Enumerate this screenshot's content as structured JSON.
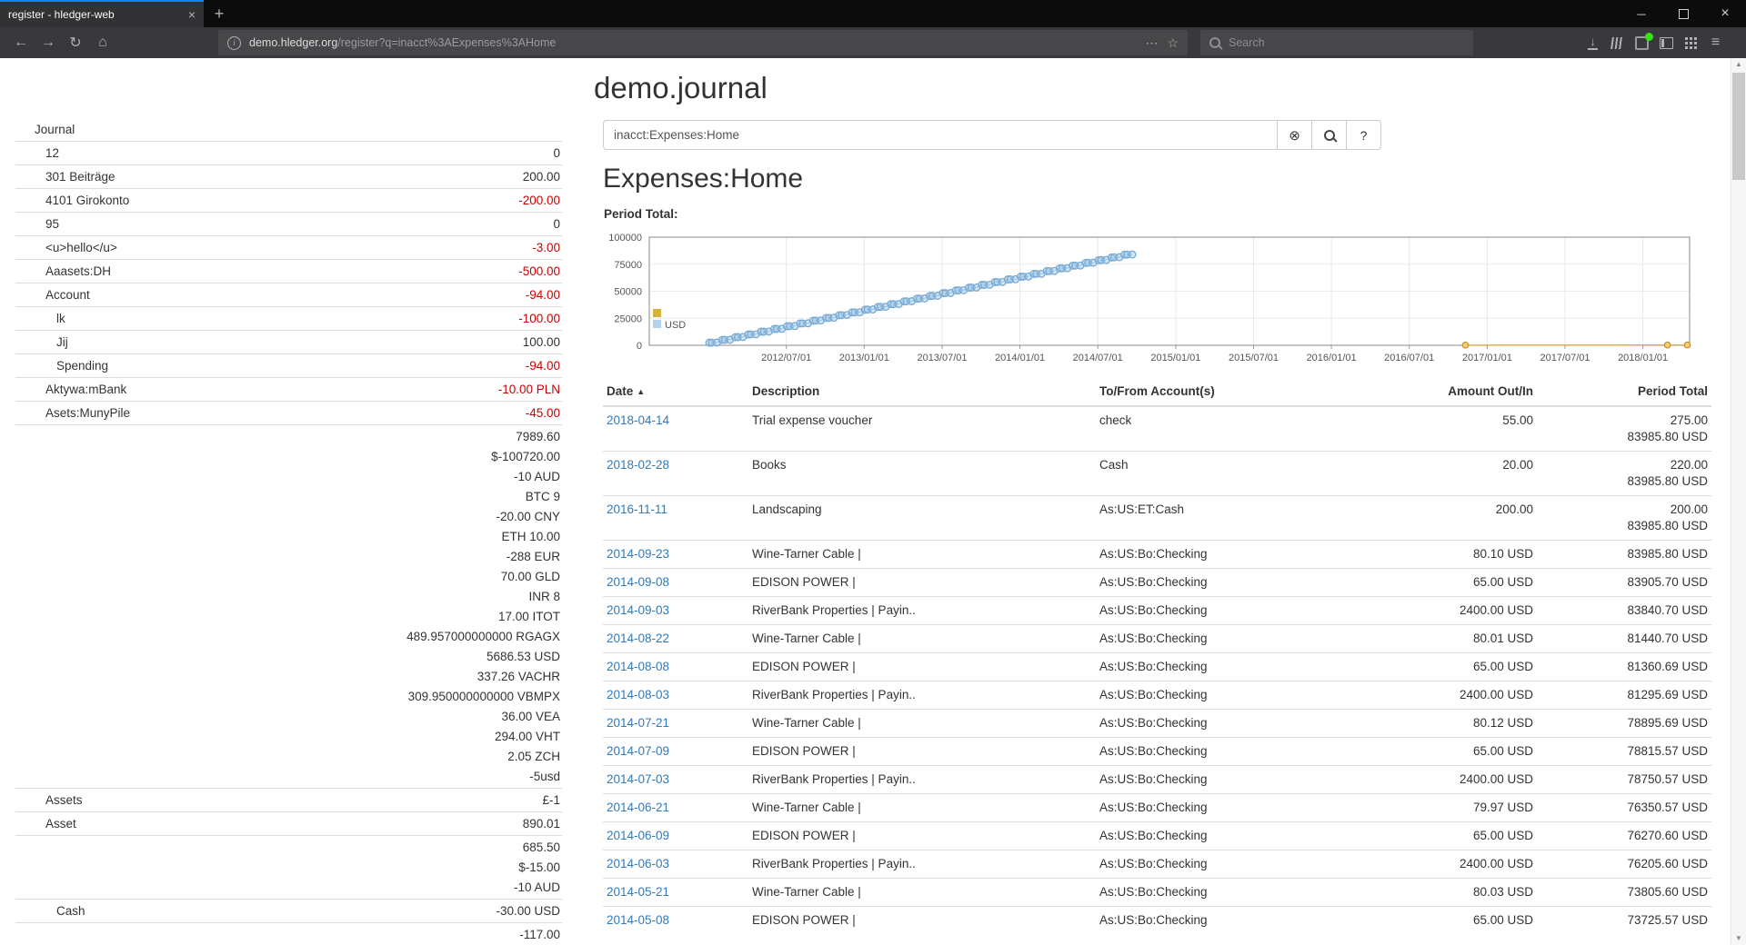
{
  "browser": {
    "tab_title": "register - hledger-web",
    "url": {
      "domain": "demo.hledger.org",
      "path": "/register?q=inacct%3AExpenses%3AHome"
    },
    "search_placeholder": "Search"
  },
  "icons": {
    "back": "←",
    "forward": "→",
    "reload": "↻",
    "home": "⌂",
    "info": "i",
    "page_actions": "⋯",
    "bookmark": "☆",
    "menu": "≡",
    "new_tab": "+",
    "tab_close": "×",
    "window_minimize": "─",
    "window_close": "×",
    "download": "↓",
    "clear": "⊗",
    "help": "?",
    "sort_asc": "▲"
  },
  "page": {
    "title": "demo.journal",
    "search_query": "inacct:Expenses:Home",
    "heading": "Expenses:Home",
    "chart_title": "Period Total:"
  },
  "sidebar": {
    "header": "Journal",
    "rows": [
      {
        "label": "12",
        "indent": 1,
        "amounts": [
          {
            "text": "0",
            "negative": false
          }
        ]
      },
      {
        "label": "301 Beiträge",
        "indent": 1,
        "amounts": [
          {
            "text": "200.00",
            "negative": false
          }
        ]
      },
      {
        "label": "4101 Girokonto",
        "indent": 1,
        "amounts": [
          {
            "text": "-200.00",
            "negative": true
          }
        ]
      },
      {
        "label": "95",
        "indent": 1,
        "amounts": [
          {
            "text": "0",
            "negative": false
          }
        ]
      },
      {
        "label": "<u>hello</u>",
        "indent": 1,
        "amounts": [
          {
            "text": "-3.00",
            "negative": true
          }
        ]
      },
      {
        "label": "Aaasets:DH",
        "indent": 1,
        "amounts": [
          {
            "text": "-500.00",
            "negative": true
          }
        ]
      },
      {
        "label": "Account",
        "indent": 1,
        "amounts": [
          {
            "text": "-94.00",
            "negative": true
          }
        ]
      },
      {
        "label": "lk",
        "indent": 2,
        "amounts": [
          {
            "text": "-100.00",
            "negative": true
          }
        ]
      },
      {
        "label": "Jij",
        "indent": 2,
        "amounts": [
          {
            "text": "100.00",
            "negative": false
          }
        ]
      },
      {
        "label": "Spending",
        "indent": 2,
        "amounts": [
          {
            "text": "-94.00",
            "negative": true
          }
        ]
      },
      {
        "label": "Aktywa:mBank",
        "indent": 1,
        "amounts": [
          {
            "text": "-10.00 PLN",
            "negative": true
          }
        ]
      },
      {
        "label": "Asets:MunyPile",
        "indent": 1,
        "amounts": [
          {
            "text": "-45.00",
            "negative": true
          }
        ]
      },
      {
        "label": "",
        "indent": 1,
        "amounts": [
          {
            "text": "7989.60",
            "negative": false
          },
          {
            "text": "$-100720.00",
            "negative": false
          },
          {
            "text": "-10 AUD",
            "negative": false
          },
          {
            "text": "BTC 9",
            "negative": false
          },
          {
            "text": "-20.00 CNY",
            "negative": false
          },
          {
            "text": "ETH 10.00",
            "negative": false
          },
          {
            "text": "-288 EUR",
            "negative": false
          },
          {
            "text": "70.00 GLD",
            "negative": false
          },
          {
            "text": "INR 8",
            "negative": false
          },
          {
            "text": "17.00 ITOT",
            "negative": false
          },
          {
            "text": "489.957000000000 RGAGX",
            "negative": false
          },
          {
            "text": "5686.53 USD",
            "negative": false
          },
          {
            "text": "337.26 VACHR",
            "negative": false
          },
          {
            "text": "309.950000000000 VBMPX",
            "negative": false
          },
          {
            "text": "36.00 VEA",
            "negative": false
          },
          {
            "text": "294.00 VHT",
            "negative": false
          },
          {
            "text": "2.05 ZCH",
            "negative": false
          },
          {
            "text": "-5usd",
            "negative": false
          }
        ]
      },
      {
        "label": "Assets",
        "indent": 1,
        "amounts": [
          {
            "text": "£-1",
            "negative": false
          }
        ]
      },
      {
        "label": "Asset",
        "indent": 1,
        "amounts": [
          {
            "text": "890.01",
            "negative": false
          }
        ]
      },
      {
        "label": "",
        "indent": 1,
        "amounts": [
          {
            "text": "685.50",
            "negative": false
          },
          {
            "text": "$-15.00",
            "negative": false
          },
          {
            "text": "-10 AUD",
            "negative": false
          }
        ]
      },
      {
        "label": "Cash",
        "indent": 2,
        "amounts": [
          {
            "text": "-30.00 USD",
            "negative": false
          }
        ]
      },
      {
        "label": "",
        "indent": 1,
        "amounts": [
          {
            "text": "-117.00",
            "negative": false
          }
        ]
      }
    ]
  },
  "chart_data": {
    "type": "line",
    "title": "Period Total:",
    "ylim": [
      0,
      100000
    ],
    "y_ticks": [
      0,
      25000,
      50000,
      75000,
      100000
    ],
    "x_ticks": [
      "2012/07/01",
      "2013/01/01",
      "2013/07/01",
      "2014/01/01",
      "2014/07/01",
      "2015/01/01",
      "2015/07/01",
      "2016/01/01",
      "2016/07/01",
      "2017/01/01",
      "2017/07/01",
      "2018/01/01"
    ],
    "xlim_years": [
      2011.62,
      2018.3
    ],
    "legend": [
      {
        "label": "",
        "color": "#d8b33c"
      },
      {
        "label": "USD",
        "color": "#b4d2ea"
      }
    ],
    "series": [
      {
        "name": "USD",
        "line_color": "#a9c8e6",
        "marker_stroke": "#76a9d4",
        "marker_fill": "rgba(166,203,232,0.5)",
        "marker_radius": 3.8,
        "marker_days": [
          3,
          9,
          21
        ],
        "monthly_cumulative": [
          {
            "month": "2012-01",
            "values": [
              2400.0,
              2465.0,
              2545.0
            ]
          },
          {
            "month": "2012-02",
            "values": [
              4945.0,
              5010.0,
              5090.0
            ]
          },
          {
            "month": "2012-03",
            "values": [
              7490.0,
              7555.0,
              7635.0
            ]
          },
          {
            "month": "2012-04",
            "values": [
              10035.0,
              10100.0,
              10180.0
            ]
          },
          {
            "month": "2012-05",
            "values": [
              12580.0,
              12645.0,
              12725.0
            ]
          },
          {
            "month": "2012-06",
            "values": [
              15125.0,
              15190.0,
              15270.0
            ]
          },
          {
            "month": "2012-07",
            "values": [
              17670.0,
              17735.0,
              17815.0
            ]
          },
          {
            "month": "2012-08",
            "values": [
              20215.0,
              20280.0,
              20360.0
            ]
          },
          {
            "month": "2012-09",
            "values": [
              22760.0,
              22825.0,
              22905.0
            ]
          },
          {
            "month": "2012-10",
            "values": [
              25305.0,
              25370.0,
              25450.0
            ]
          },
          {
            "month": "2012-11",
            "values": [
              27850.0,
              27915.0,
              27995.0
            ]
          },
          {
            "month": "2012-12",
            "values": [
              30395.0,
              30460.0,
              30540.0
            ]
          },
          {
            "month": "2013-01",
            "values": [
              32940.0,
              33005.0,
              33085.0
            ]
          },
          {
            "month": "2013-02",
            "values": [
              35485.0,
              35550.0,
              35630.0
            ]
          },
          {
            "month": "2013-03",
            "values": [
              38030.0,
              38095.0,
              38175.0
            ]
          },
          {
            "month": "2013-04",
            "values": [
              40575.0,
              40640.0,
              40720.0
            ]
          },
          {
            "month": "2013-05",
            "values": [
              43120.0,
              43185.0,
              43265.0
            ]
          },
          {
            "month": "2013-06",
            "values": [
              45665.0,
              45730.0,
              45810.0
            ]
          },
          {
            "month": "2013-07",
            "values": [
              48210.0,
              48275.0,
              48355.0
            ]
          },
          {
            "month": "2013-08",
            "values": [
              50755.0,
              50820.0,
              50900.0
            ]
          },
          {
            "month": "2013-09",
            "values": [
              53300.0,
              53365.0,
              53445.0
            ]
          },
          {
            "month": "2013-10",
            "values": [
              55845.0,
              55910.0,
              55990.0
            ]
          },
          {
            "month": "2013-11",
            "values": [
              58390.0,
              58455.0,
              58535.0
            ]
          },
          {
            "month": "2013-12",
            "values": [
              60935.0,
              61000.0,
              61080.0
            ]
          },
          {
            "month": "2014-01",
            "values": [
              63480.0,
              63545.0,
              63625.0
            ]
          },
          {
            "month": "2014-02",
            "values": [
              66025.0,
              66090.0,
              66170.0
            ]
          },
          {
            "month": "2014-03",
            "values": [
              68570.0,
              68635.0,
              68715.0
            ]
          },
          {
            "month": "2014-04",
            "values": [
              71115.0,
              71180.0,
              71260.0
            ]
          },
          {
            "month": "2014-05",
            "values": [
              73660.57,
              73725.57,
              73805.6
            ]
          },
          {
            "month": "2014-06",
            "values": [
              76205.6,
              76270.6,
              76350.57
            ]
          },
          {
            "month": "2014-07",
            "values": [
              78750.57,
              78815.57,
              78895.69
            ]
          },
          {
            "month": "2014-08",
            "values": [
              81295.69,
              81360.69,
              81440.7
            ]
          },
          {
            "month": "2014-09",
            "values": [
              83840.7,
              83905.7,
              83985.8
            ]
          }
        ]
      },
      {
        "name": "",
        "line_color": "#dca43a",
        "marker_stroke": "#c9912b",
        "marker_fill": "#f4d07f",
        "marker_radius": 3.2,
        "points": [
          [
            "2016-11-11",
            200.0
          ],
          [
            "2018-02-28",
            220.0
          ],
          [
            "2018-04-14",
            275.0
          ]
        ]
      }
    ]
  },
  "register": {
    "columns": [
      "Date",
      "Description",
      "To/From Account(s)",
      "Amount Out/In",
      "Period Total"
    ],
    "sort": {
      "column": "Date",
      "direction": "asc"
    },
    "rows": [
      {
        "date": "2018-04-14",
        "description": "Trial expense voucher",
        "account": "check",
        "amount": "55.00",
        "totals": [
          "275.00",
          "83985.80 USD"
        ]
      },
      {
        "date": "2018-02-28",
        "description": "Books",
        "account": "Cash",
        "amount": "20.00",
        "totals": [
          "220.00",
          "83985.80 USD"
        ]
      },
      {
        "date": "2016-11-11",
        "description": "Landscaping",
        "account": "As:US:ET:Cash",
        "amount": "200.00",
        "totals": [
          "200.00",
          "83985.80 USD"
        ]
      },
      {
        "date": "2014-09-23",
        "description": "Wine-Tarner Cable |",
        "account": "As:US:Bo:Checking",
        "amount": "80.10 USD",
        "totals": [
          "83985.80 USD"
        ]
      },
      {
        "date": "2014-09-08",
        "description": "EDISON POWER |",
        "account": "As:US:Bo:Checking",
        "amount": "65.00 USD",
        "totals": [
          "83905.70 USD"
        ]
      },
      {
        "date": "2014-09-03",
        "description": "RiverBank Properties | Payin..",
        "account": "As:US:Bo:Checking",
        "amount": "2400.00 USD",
        "totals": [
          "83840.70 USD"
        ]
      },
      {
        "date": "2014-08-22",
        "description": "Wine-Tarner Cable |",
        "account": "As:US:Bo:Checking",
        "amount": "80.01 USD",
        "totals": [
          "81440.70 USD"
        ]
      },
      {
        "date": "2014-08-08",
        "description": "EDISON POWER |",
        "account": "As:US:Bo:Checking",
        "amount": "65.00 USD",
        "totals": [
          "81360.69 USD"
        ]
      },
      {
        "date": "2014-08-03",
        "description": "RiverBank Properties | Payin..",
        "account": "As:US:Bo:Checking",
        "amount": "2400.00 USD",
        "totals": [
          "81295.69 USD"
        ]
      },
      {
        "date": "2014-07-21",
        "description": "Wine-Tarner Cable |",
        "account": "As:US:Bo:Checking",
        "amount": "80.12 USD",
        "totals": [
          "78895.69 USD"
        ]
      },
      {
        "date": "2014-07-09",
        "description": "EDISON POWER |",
        "account": "As:US:Bo:Checking",
        "amount": "65.00 USD",
        "totals": [
          "78815.57 USD"
        ]
      },
      {
        "date": "2014-07-03",
        "description": "RiverBank Properties | Payin..",
        "account": "As:US:Bo:Checking",
        "amount": "2400.00 USD",
        "totals": [
          "78750.57 USD"
        ]
      },
      {
        "date": "2014-06-21",
        "description": "Wine-Tarner Cable |",
        "account": "As:US:Bo:Checking",
        "amount": "79.97 USD",
        "totals": [
          "76350.57 USD"
        ]
      },
      {
        "date": "2014-06-09",
        "description": "EDISON POWER |",
        "account": "As:US:Bo:Checking",
        "amount": "65.00 USD",
        "totals": [
          "76270.60 USD"
        ]
      },
      {
        "date": "2014-06-03",
        "description": "RiverBank Properties | Payin..",
        "account": "As:US:Bo:Checking",
        "amount": "2400.00 USD",
        "totals": [
          "76205.60 USD"
        ]
      },
      {
        "date": "2014-05-21",
        "description": "Wine-Tarner Cable |",
        "account": "As:US:Bo:Checking",
        "amount": "80.03 USD",
        "totals": [
          "73805.60 USD"
        ]
      },
      {
        "date": "2014-05-08",
        "description": "EDISON POWER |",
        "account": "As:US:Bo:Checking",
        "amount": "65.00 USD",
        "totals": [
          "73725.57 USD"
        ]
      }
    ]
  }
}
